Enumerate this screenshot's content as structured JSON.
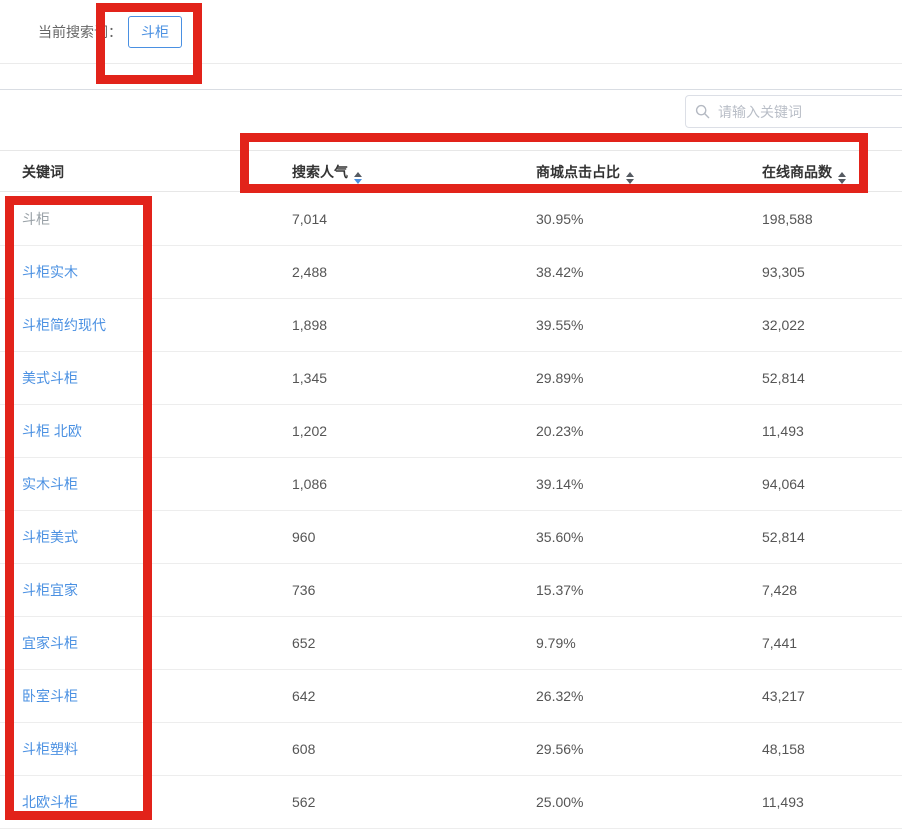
{
  "topbar": {
    "label": "当前搜索词：",
    "tag": "斗柜"
  },
  "search": {
    "placeholder": "请输入关键词",
    "icon": "search-icon"
  },
  "table": {
    "columns": [
      {
        "label": "关键词",
        "sortable": false,
        "sort": ""
      },
      {
        "label": "搜索人气",
        "sortable": true,
        "sort": "desc"
      },
      {
        "label": "商城点击占比",
        "sortable": true,
        "sort": ""
      },
      {
        "label": "在线商品数",
        "sortable": true,
        "sort": ""
      }
    ],
    "rows": [
      {
        "keyword": "斗柜",
        "is_link": false,
        "search_popularity": "7,014",
        "mall_click_ratio": "30.95%",
        "online_products": "198,588"
      },
      {
        "keyword": "斗柜实木",
        "is_link": true,
        "search_popularity": "2,488",
        "mall_click_ratio": "38.42%",
        "online_products": "93,305"
      },
      {
        "keyword": "斗柜简约现代",
        "is_link": true,
        "search_popularity": "1,898",
        "mall_click_ratio": "39.55%",
        "online_products": "32,022"
      },
      {
        "keyword": "美式斗柜",
        "is_link": true,
        "search_popularity": "1,345",
        "mall_click_ratio": "29.89%",
        "online_products": "52,814"
      },
      {
        "keyword": "斗柜 北欧",
        "is_link": true,
        "search_popularity": "1,202",
        "mall_click_ratio": "20.23%",
        "online_products": "11,493"
      },
      {
        "keyword": "实木斗柜",
        "is_link": true,
        "search_popularity": "1,086",
        "mall_click_ratio": "39.14%",
        "online_products": "94,064"
      },
      {
        "keyword": "斗柜美式",
        "is_link": true,
        "search_popularity": "960",
        "mall_click_ratio": "35.60%",
        "online_products": "52,814"
      },
      {
        "keyword": "斗柜宜家",
        "is_link": true,
        "search_popularity": "736",
        "mall_click_ratio": "15.37%",
        "online_products": "7,428"
      },
      {
        "keyword": "宜家斗柜",
        "is_link": true,
        "search_popularity": "652",
        "mall_click_ratio": "9.79%",
        "online_products": "7,441"
      },
      {
        "keyword": "卧室斗柜",
        "is_link": true,
        "search_popularity": "642",
        "mall_click_ratio": "26.32%",
        "online_products": "43,217"
      },
      {
        "keyword": "斗柜塑料",
        "is_link": true,
        "search_popularity": "608",
        "mall_click_ratio": "29.56%",
        "online_products": "48,158"
      },
      {
        "keyword": "北欧斗柜",
        "is_link": true,
        "search_popularity": "562",
        "mall_click_ratio": "25.00%",
        "online_products": "11,493"
      }
    ]
  },
  "colors": {
    "link_blue": "#4a90e2",
    "active_sort_blue": "#4a90e2",
    "annotation_red": "#e2231a",
    "header_text": "#333333",
    "number_text": "#555555",
    "muted_keyword": "#98a0a6"
  },
  "annotations": [
    {
      "name": "tag-highlight"
    },
    {
      "name": "header-columns-highlight"
    },
    {
      "name": "keyword-column-highlight"
    }
  ]
}
